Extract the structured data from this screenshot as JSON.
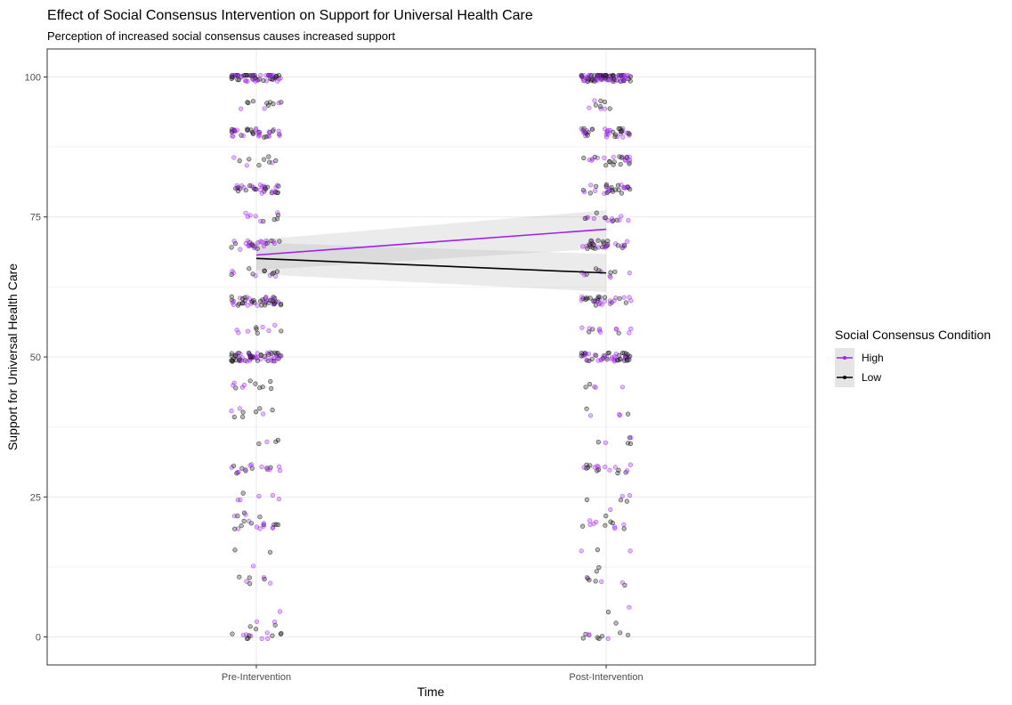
{
  "chart_data": {
    "type": "scatter",
    "title": "Effect of Social Consensus Intervention on Support for Universal Health Care",
    "subtitle": "Perception of increased social consensus causes increased support",
    "xlabel": "Time",
    "ylabel": "Support for Universal Health Care",
    "categories": [
      "Pre-Intervention",
      "Post-Intervention"
    ],
    "ylim": [
      -5,
      105
    ],
    "y_ticks": [
      "0",
      "25",
      "50",
      "75",
      "100"
    ],
    "y_tick_values": [
      0,
      25,
      50,
      75,
      100
    ],
    "grid": true,
    "legend_position": "right",
    "legend": {
      "title": "Social Consensus Condition",
      "entries": [
        "High",
        "Low"
      ]
    },
    "series": [
      {
        "name": "High",
        "color": "#a020f0",
        "means": [
          68.2,
          72.8
        ],
        "ci_lower": [
          65.5,
          69.4
        ],
        "ci_upper": [
          70.9,
          76.2
        ]
      },
      {
        "name": "Low",
        "color": "#000000",
        "means": [
          67.6,
          65.0
        ],
        "ci_lower": [
          64.8,
          61.6
        ],
        "ci_upper": [
          70.4,
          68.4
        ]
      }
    ],
    "jitter_value_distribution": {
      "description_values": [
        0,
        2,
        5,
        10,
        12,
        15,
        20,
        22,
        25,
        30,
        35,
        40,
        45,
        50,
        55,
        60,
        65,
        70,
        75,
        80,
        85,
        90,
        95,
        100
      ],
      "weights": [
        7,
        1,
        1,
        4,
        1,
        1,
        9,
        2,
        3,
        10,
        5,
        7,
        5,
        30,
        6,
        22,
        7,
        22,
        8,
        18,
        9,
        18,
        6,
        40
      ]
    }
  }
}
